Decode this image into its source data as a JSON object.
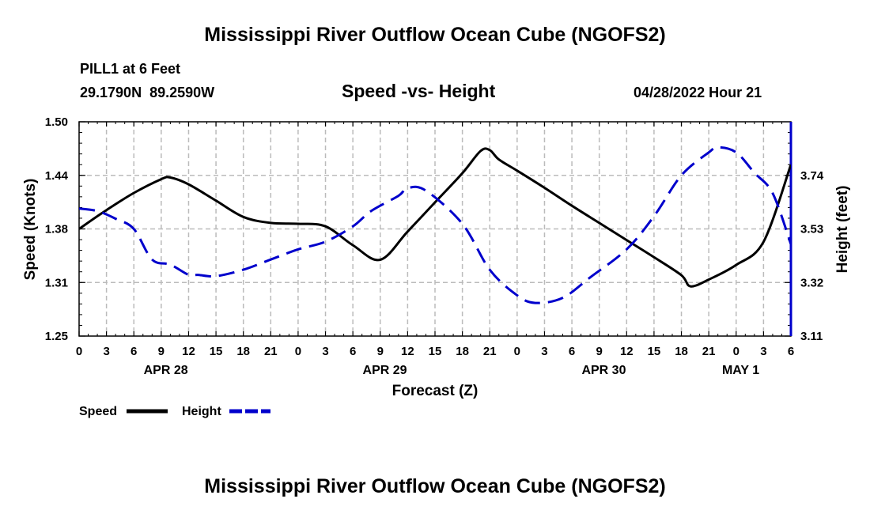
{
  "page": {
    "title": "Mississippi River Outflow Ocean Cube (NGOFS2)",
    "title_bottom": "Mississippi River Outflow Ocean Cube (NGOFS2)",
    "station": "PILL1 at 6 Feet",
    "coords": "29.1790N  89.2590W",
    "subtitle": "Speed -vs- Height",
    "datetime": "04/28/2022 Hour 21"
  },
  "chart_data": {
    "type": "line",
    "title": "Speed -vs- Height",
    "xlabel": "Forecast (Z)",
    "ylabel": "Speed (Knots)",
    "y2label": "Height (feet)",
    "x_range": [
      0,
      78
    ],
    "ylim": [
      1.25,
      1.5
    ],
    "y2lim": [
      3.11,
      3.95
    ],
    "y_ticks": [
      "1.25",
      "1.31",
      "1.38",
      "1.44",
      "1.50"
    ],
    "y2_ticks": [
      "3.11",
      "3.32",
      "3.53",
      "3.74"
    ],
    "y2_tick_values": [
      3.11,
      3.32,
      3.53,
      3.74
    ],
    "x_ticks": [
      "0",
      "3",
      "6",
      "9",
      "12",
      "15",
      "18",
      "21",
      "0",
      "3",
      "6",
      "9",
      "12",
      "15",
      "18",
      "21",
      "0",
      "3",
      "6",
      "9",
      "12",
      "15",
      "18",
      "21",
      "0",
      "3",
      "6"
    ],
    "date_labels": [
      {
        "label": "APR 28",
        "x": 9.5
      },
      {
        "label": "APR 29",
        "x": 33.5
      },
      {
        "label": "APR 30",
        "x": 57.5
      },
      {
        "label": "MAY 1",
        "x": 72.5
      }
    ],
    "legend": [
      {
        "name": "Speed",
        "color": "#000000",
        "style": "solid"
      },
      {
        "name": "Height",
        "color": "#0000cc",
        "style": "dashed"
      }
    ],
    "series": [
      {
        "name": "Speed",
        "axis": "left",
        "color": "#000000",
        "x": [
          0,
          3,
          6,
          9,
          10,
          12,
          15,
          18,
          21,
          24,
          27,
          30,
          33,
          36,
          39,
          42,
          45,
          44,
          46,
          48,
          51,
          54,
          57,
          60,
          63,
          66,
          67,
          69,
          72,
          75,
          78
        ],
        "y": [
          1.375,
          1.397,
          1.417,
          1.433,
          1.435,
          1.427,
          1.408,
          1.389,
          1.382,
          1.381,
          1.378,
          1.356,
          1.339,
          1.372,
          1.406,
          1.44,
          1.467,
          1.466,
          1.456,
          1.443,
          1.423,
          1.402,
          1.382,
          1.362,
          1.342,
          1.321,
          1.308,
          1.316,
          1.333,
          1.36,
          1.45
        ]
      },
      {
        "name": "Height",
        "axis": "right",
        "color": "#0000cc",
        "x": [
          0,
          2,
          4,
          6,
          8,
          10,
          12,
          13,
          15,
          18,
          21,
          24,
          27,
          30,
          32,
          35,
          36,
          38,
          42,
          45,
          48,
          50,
          53,
          56,
          60,
          63,
          66,
          69,
          70,
          72,
          74,
          76,
          78
        ],
        "y": [
          3.61,
          3.6,
          3.57,
          3.53,
          3.41,
          3.39,
          3.35,
          3.35,
          3.345,
          3.37,
          3.41,
          3.45,
          3.48,
          3.54,
          3.6,
          3.66,
          3.69,
          3.68,
          3.55,
          3.37,
          3.27,
          3.24,
          3.26,
          3.34,
          3.45,
          3.58,
          3.74,
          3.83,
          3.85,
          3.83,
          3.75,
          3.67,
          3.47
        ]
      }
    ]
  }
}
